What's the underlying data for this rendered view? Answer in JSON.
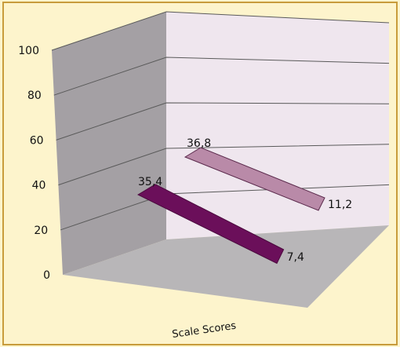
{
  "chart_data": {
    "type": "line",
    "style": "3d-ribbon",
    "title": "",
    "xlabel": "Scale Scores",
    "ylabel": "",
    "ylim": [
      0,
      100
    ],
    "yticks": [
      0,
      20,
      40,
      60,
      80,
      100
    ],
    "grid": true,
    "legend": "none",
    "series": [
      {
        "start": 35.4,
        "end": 7.4,
        "labels": [
          "35,4",
          "7,4"
        ],
        "color": "#6b0f5a"
      },
      {
        "start": 36.8,
        "end": 11.2,
        "labels": [
          "36,8",
          "11,2"
        ],
        "color": "#b98aa8"
      }
    ],
    "colors": {
      "background": "#fdf4cc",
      "frame": "#c89c3c",
      "back_wall": "#efe6ee",
      "left_wall": "#a4a0a4",
      "floor": "#b8b6b8"
    }
  }
}
